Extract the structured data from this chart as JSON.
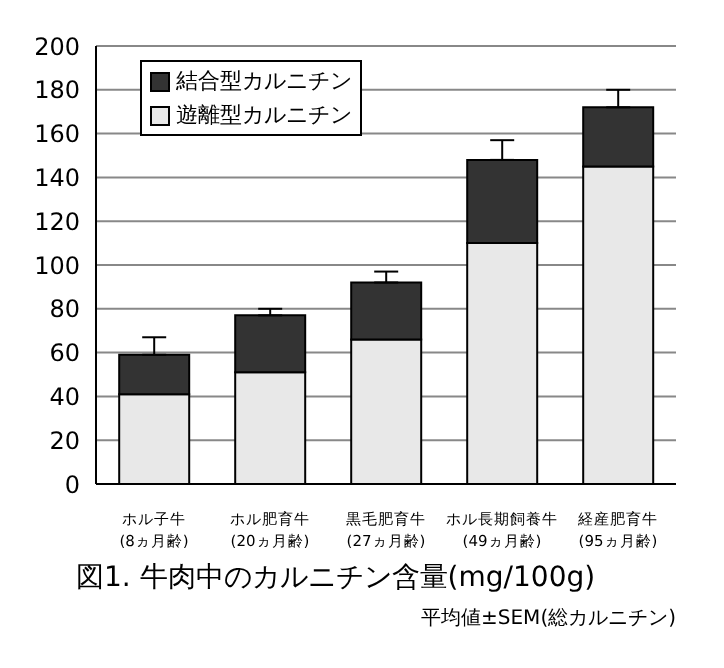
{
  "chart_data": {
    "type": "bar",
    "stacked": true,
    "title": "図1. 牛肉中のカルニチン含量(mg/100g)",
    "annotations": [
      "平均値±SEM(総カルニチン)"
    ],
    "categories": [
      "ホル子牛\n(8ヵ月齢)",
      "ホル肥育牛\n(20ヵ月齢)",
      "黒毛肥育牛\n(27ヵ月齢)",
      "ホル長期飼養牛\n(49ヵ月齢)",
      "経産肥育牛\n(95ヵ月齢)"
    ],
    "series": [
      {
        "name": "遊離型カルニチン",
        "color": "#e8e8e8",
        "values": [
          41,
          51,
          66,
          110,
          145
        ]
      },
      {
        "name": "結合型カルニチン",
        "color": "#333333",
        "values": [
          18,
          26,
          26,
          38,
          27
        ],
        "errors": [
          [
            59,
            67
          ],
          [
            77,
            80
          ],
          [
            92,
            97
          ],
          [
            148,
            157
          ],
          [
            172,
            180
          ]
        ]
      }
    ],
    "ylim": [
      0,
      200
    ],
    "yticks": [
      0,
      20,
      40,
      60,
      80,
      100,
      120,
      140,
      160,
      180,
      200
    ],
    "grid": "y",
    "legend": "top left"
  }
}
